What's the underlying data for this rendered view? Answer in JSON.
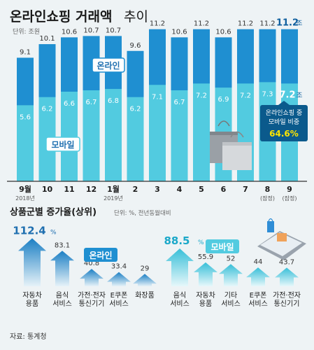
{
  "top": {
    "title_main": "온라인쇼핑 거래액",
    "title_sub": "추이",
    "unit": "단위: 조원",
    "online_label": "온라인",
    "mobile_label": "모바일",
    "last_unit": "조",
    "callout": {
      "line1": "온라인쇼핑 중",
      "line2": "모바일 비중",
      "value": "64.6%"
    }
  },
  "bottom": {
    "title": "상품군별 증가율(상위)",
    "unit": "단위: %, 전년동월대비",
    "online_label": "온라인",
    "mobile_label": "모바일",
    "percent": "%"
  },
  "source": "자료: 통계청",
  "colors": {
    "online": "#1f8fd1",
    "mobile": "#52cbe0",
    "dark": "#0f6eb0",
    "callout": "#0b5a8c",
    "highlight": "#ffe600"
  },
  "chart_data": [
    {
      "type": "bar",
      "title": "온라인쇼핑 거래액 추이",
      "unit": "단위: 조원",
      "categories": [
        "9월",
        "10",
        "11",
        "12",
        "1월",
        "2",
        "3",
        "4",
        "5",
        "6",
        "7",
        "8",
        "9"
      ],
      "category_notes": [
        "2018년",
        "",
        "",
        "",
        "2019년",
        "",
        "",
        "",
        "",
        "",
        "",
        "(잠정)",
        "(잠정)"
      ],
      "series": [
        {
          "name": "온라인",
          "values": [
            9.1,
            10.1,
            10.6,
            10.7,
            10.7,
            9.6,
            11.2,
            10.6,
            11.2,
            10.6,
            11.2,
            11.2,
            11.2
          ],
          "labels": [
            "9.1",
            "10.1",
            "10.6",
            "10.7",
            "10.7",
            "9.6",
            "11.2",
            "10.6",
            "11.2",
            "10.6",
            "11.2",
            "11.2",
            "11.2"
          ]
        },
        {
          "name": "모바일",
          "values": [
            5.6,
            6.2,
            6.6,
            6.7,
            6.8,
            6.2,
            7.1,
            6.7,
            7.2,
            6.9,
            7.2,
            7.3,
            7.2
          ],
          "labels": [
            "5.6",
            "6.2",
            "6.6",
            "6.7",
            "6.8",
            "6.2",
            "7.1",
            "6.7",
            "7.2",
            "6.9",
            "7.2",
            "7.3",
            "7.2"
          ]
        }
      ],
      "ylim": [
        0,
        12.6
      ]
    },
    {
      "type": "bar",
      "title": "상품군별 증가율(상위)",
      "series_name": "온라인",
      "categories": [
        "자동차 용품",
        "음식 서비스",
        "가전·전자 통신기기",
        "E쿠폰 서비스",
        "화장품"
      ],
      "values": [
        112.4,
        83.1,
        40.8,
        33.4,
        29
      ],
      "labels": [
        "112.4",
        "83.1",
        "40.8",
        "33.4",
        "29"
      ]
    },
    {
      "type": "bar",
      "title": "상품군별 증가율(상위)",
      "series_name": "모바일",
      "categories": [
        "음식 서비스",
        "자동차 용품",
        "기타 서비스",
        "E쿠폰 서비스",
        "가전·전자 통신기기"
      ],
      "values": [
        88.5,
        55.9,
        52,
        44,
        43.7
      ],
      "labels": [
        "88.5",
        "55.9",
        "52",
        "44",
        "43.7"
      ]
    }
  ]
}
